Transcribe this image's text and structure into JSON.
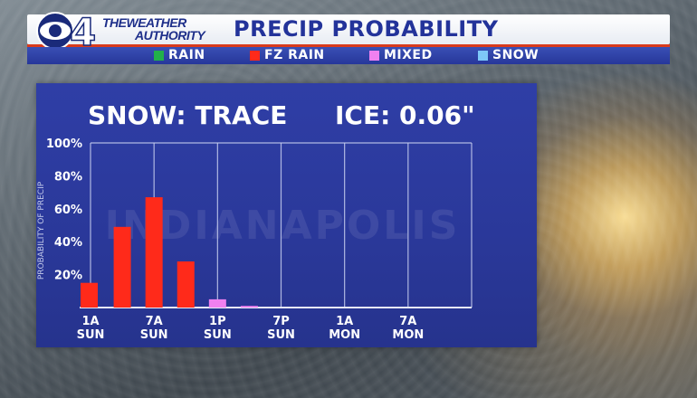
{
  "header": {
    "channel_number": "4",
    "brand_line1": "THEWEATHER",
    "brand_line2": "AUTHORITY",
    "title": "PRECIP PROBABILITY"
  },
  "legend": [
    {
      "label": "RAIN",
      "color": "#22b04a"
    },
    {
      "label": "FZ RAIN",
      "color": "#ff2a1a"
    },
    {
      "label": "MIXED",
      "color": "#f080f0"
    },
    {
      "label": "SNOW",
      "color": "#7ec8f8"
    }
  ],
  "stats": {
    "snow": "SNOW: TRACE",
    "ice": "ICE: 0.06\""
  },
  "chart_data": {
    "type": "bar",
    "watermark": "INDIANAPOLIS",
    "ylabel": "PROBABILITY OF PRECIP",
    "ylim": [
      0,
      100
    ],
    "yticks": [
      20,
      40,
      60,
      80,
      100
    ],
    "ytick_labels": [
      "20%",
      "40%",
      "60%",
      "80%",
      "100%"
    ],
    "x_hours_range": [
      0,
      36
    ],
    "x_ticks": [
      {
        "hour": 0,
        "line1": "1A",
        "line2": "SUN"
      },
      {
        "hour": 6,
        "line1": "7A",
        "line2": "SUN"
      },
      {
        "hour": 12,
        "line1": "1P",
        "line2": "SUN"
      },
      {
        "hour": 18,
        "line1": "7P",
        "line2": "SUN"
      },
      {
        "hour": 24,
        "line1": "1A",
        "line2": "MON"
      },
      {
        "hour": 30,
        "line1": "7A",
        "line2": "MON"
      }
    ],
    "bars": [
      {
        "hour": 0,
        "value": 15,
        "type": "FZ RAIN"
      },
      {
        "hour": 3,
        "value": 49,
        "type": "FZ RAIN"
      },
      {
        "hour": 6,
        "value": 67,
        "type": "FZ RAIN"
      },
      {
        "hour": 9,
        "value": 28,
        "type": "FZ RAIN"
      },
      {
        "hour": 12,
        "value": 5,
        "type": "MIXED"
      },
      {
        "hour": 15,
        "value": 1,
        "type": "MIXED"
      }
    ]
  }
}
